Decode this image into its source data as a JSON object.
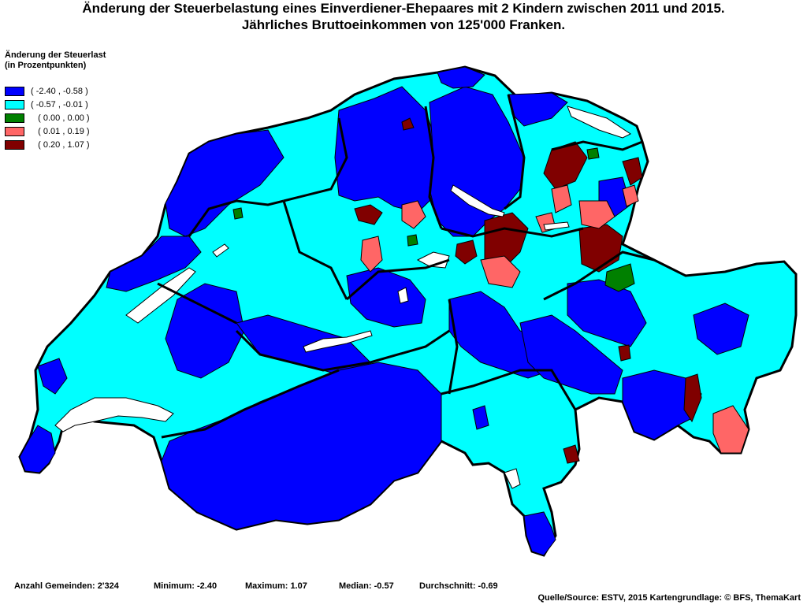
{
  "title": {
    "line1": "Änderung der Steuerbelastung eines Einverdiener-Ehepaares mit 2 Kindern zwischen 2011 und 2015.",
    "line2": "Jährliches Bruttoeinkommen von 125'000 Franken."
  },
  "legend": {
    "title_line1": "Änderung der Steuerlast",
    "title_line2": "(in Prozentpunkten)",
    "items": [
      {
        "label": "( -2.40 , -0.58 )",
        "color": "#0000ff"
      },
      {
        "label": "( -0.57 , -0.01 )",
        "color": "#00ffff"
      },
      {
        "label": "   ( 0.00 , 0.00 )",
        "color": "#008000"
      },
      {
        "label": "   ( 0.01 , 0.19 )",
        "color": "#ff6666"
      },
      {
        "label": "   ( 0.20 , 1.07 )",
        "color": "#800000"
      }
    ]
  },
  "stats": {
    "count": "Anzahl Gemeinden: 2'324",
    "min": "Minimum: -2.40",
    "max": "Maximum: 1.07",
    "median": "Median: -0.57",
    "mean": "Durchschnitt: -0.69"
  },
  "source": "Quelle/Source: ESTV, 2015 Kartengrundlage: © BFS, ThemaKart",
  "colors": {
    "strong_decrease": "#0000ff",
    "small_decrease": "#00ffff",
    "no_change": "#008000",
    "small_increase": "#ff6666",
    "strong_increase": "#800000",
    "lake": "#ffffff",
    "border": "#000000"
  }
}
